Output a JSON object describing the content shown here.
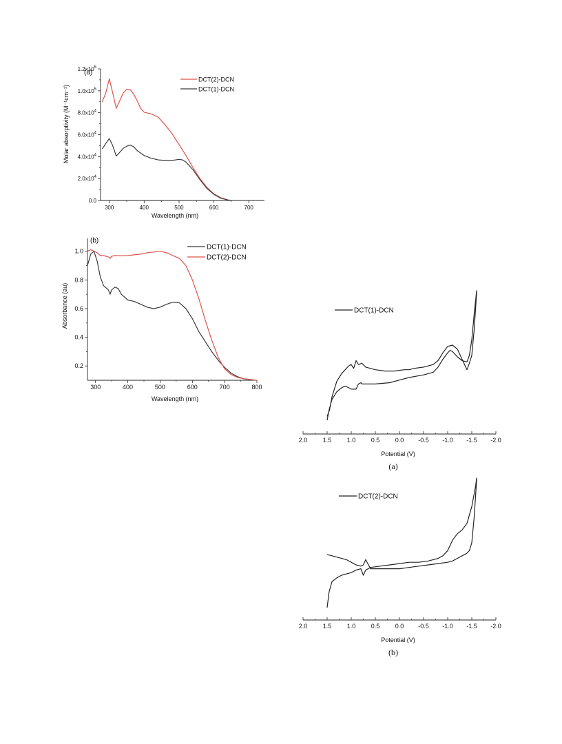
{
  "chart_data": [
    {
      "type": "line",
      "panel_label": "(a)",
      "xlabel": "Wavelength (nm)",
      "ylabel": "Molar absorptivity (M⁻¹cm⁻¹)",
      "xlim": [
        275,
        745
      ],
      "ylim": [
        0,
        120000
      ],
      "xticks": [
        300,
        400,
        500,
        600,
        700
      ],
      "yticks": [
        0,
        20000,
        40000,
        60000,
        80000,
        100000,
        120000
      ],
      "yticklabels": [
        {
          "mantissa": "0.0",
          "exp": ""
        },
        {
          "mantissa": "2.0x10",
          "exp": "4"
        },
        {
          "mantissa": "4.0x10",
          "exp": "4"
        },
        {
          "mantissa": "6.0x10",
          "exp": "4"
        },
        {
          "mantissa": "8.0x10",
          "exp": "4"
        },
        {
          "mantissa": "1.0x10",
          "exp": "5"
        },
        {
          "mantissa": "1.2x10",
          "exp": "5"
        }
      ],
      "legend_position": "top-right",
      "series": [
        {
          "name": "DCT(2)-DCN",
          "color": "#e0524a",
          "x": [
            280,
            290,
            300,
            310,
            320,
            330,
            340,
            350,
            360,
            370,
            380,
            390,
            400,
            420,
            440,
            460,
            480,
            500,
            520,
            540,
            560,
            580,
            600,
            620,
            640,
            650
          ],
          "y": [
            90000,
            98000,
            111000,
            98000,
            84000,
            91000,
            98000,
            101500,
            101000,
            97000,
            91000,
            84000,
            80500,
            79000,
            76000,
            69000,
            61000,
            51000,
            41000,
            30000,
            20000,
            12000,
            6000,
            2500,
            500,
            0
          ]
        },
        {
          "name": "DCT(1)-DCN",
          "color": "#3a3a3a",
          "x": [
            280,
            290,
            300,
            310,
            320,
            330,
            340,
            350,
            360,
            370,
            380,
            400,
            420,
            440,
            460,
            480,
            500,
            510,
            520,
            540,
            560,
            580,
            600,
            620,
            640,
            650
          ],
          "y": [
            47000,
            52000,
            56500,
            50000,
            40500,
            44000,
            47500,
            49500,
            50500,
            49000,
            45500,
            41000,
            38500,
            37000,
            36500,
            36500,
            37500,
            37000,
            35000,
            28000,
            19000,
            11000,
            5500,
            2000,
            500,
            0
          ]
        }
      ]
    },
    {
      "type": "line",
      "panel_label": "(b)",
      "xlabel": "Wavelength (nm)",
      "ylabel": "Absorbance (au)",
      "xlim": [
        275,
        800
      ],
      "ylim": [
        0.1,
        1.09
      ],
      "xticks": [
        300,
        400,
        500,
        600,
        700,
        800
      ],
      "yticks": [
        0.2,
        0.4,
        0.6,
        0.8,
        1.0
      ],
      "yticklabels": [
        "0.2",
        "0.4",
        "0.6",
        "0.8",
        "1.0"
      ],
      "legend_position": "top-right",
      "series": [
        {
          "name": "DCT(1)-DCN",
          "color": "#3a3a3a",
          "x": [
            275,
            285,
            295,
            305,
            315,
            325,
            340,
            345,
            350,
            360,
            370,
            380,
            400,
            420,
            440,
            460,
            480,
            500,
            520,
            540,
            560,
            580,
            600,
            620,
            640,
            660,
            680,
            700,
            720,
            740,
            760,
            780,
            800
          ],
          "y": [
            0.9,
            0.98,
            1.0,
            0.93,
            0.82,
            0.76,
            0.73,
            0.7,
            0.73,
            0.75,
            0.74,
            0.7,
            0.66,
            0.65,
            0.63,
            0.61,
            0.6,
            0.61,
            0.63,
            0.645,
            0.64,
            0.6,
            0.53,
            0.44,
            0.37,
            0.3,
            0.24,
            0.19,
            0.15,
            0.125,
            0.11,
            0.105,
            0.1
          ]
        },
        {
          "name": "DCT(2)-DCN",
          "color": "#e0524a",
          "x": [
            275,
            285,
            295,
            305,
            315,
            325,
            340,
            345,
            350,
            360,
            380,
            400,
            420,
            440,
            460,
            480,
            500,
            520,
            540,
            560,
            580,
            600,
            620,
            640,
            660,
            680,
            700,
            720,
            740,
            760,
            780,
            800
          ],
          "y": [
            1.0,
            1.01,
            1.0,
            0.99,
            0.97,
            0.97,
            0.96,
            0.95,
            0.965,
            0.97,
            0.968,
            0.97,
            0.975,
            0.98,
            0.99,
            0.995,
            1.0,
            0.99,
            0.97,
            0.95,
            0.9,
            0.8,
            0.67,
            0.52,
            0.38,
            0.26,
            0.18,
            0.14,
            0.12,
            0.11,
            0.105,
            0.1
          ]
        }
      ]
    },
    {
      "type": "line",
      "caption": "(a)",
      "xlabel": "Potential (V)",
      "ylabel": "",
      "xlim": [
        2.0,
        -2.0
      ],
      "ylim": [
        0,
        1
      ],
      "xticks": [
        2.0,
        1.5,
        1.0,
        0.5,
        0.0,
        -0.5,
        -1.0,
        -1.5,
        -2.0
      ],
      "xticklabels": [
        "2.0",
        "1.5",
        "1.0",
        "0.5",
        "0.0",
        "-0.5",
        "-1.0",
        "-1.5",
        "-2.0"
      ],
      "y_axis_shown": false,
      "legend_position": "top-left",
      "series": [
        {
          "name": "DCT(1)-DCN",
          "color": "#222222",
          "x": [
            1.5,
            1.46,
            1.4,
            1.3,
            1.2,
            1.15,
            1.1,
            1.0,
            0.9,
            0.85,
            0.8,
            0.78,
            0.7,
            0.5,
            0.2,
            0.0,
            -0.2,
            -0.5,
            -0.7,
            -0.8,
            -0.9,
            -1.0,
            -1.05,
            -1.1,
            -1.2,
            -1.3,
            -1.4,
            -1.45,
            -1.5,
            -1.55,
            -1.6,
            -1.6,
            -1.55,
            -1.5,
            -1.45,
            -1.4,
            -1.3,
            -1.2,
            -1.1,
            -1.0,
            -0.9,
            -0.8,
            -0.7,
            -0.5,
            -0.3,
            -0.2,
            -0.1,
            0.0,
            0.1,
            0.3,
            0.5,
            0.7,
            0.78,
            0.85,
            0.9,
            0.95,
            1.0,
            1.05,
            1.1,
            1.2,
            1.3,
            1.4,
            1.45,
            1.5
          ],
          "y": [
            0.0,
            0.08,
            0.16,
            0.22,
            0.25,
            0.26,
            0.26,
            0.24,
            0.24,
            0.28,
            0.29,
            0.28,
            0.28,
            0.28,
            0.29,
            0.31,
            0.33,
            0.35,
            0.37,
            0.41,
            0.47,
            0.52,
            0.54,
            0.53,
            0.49,
            0.46,
            0.45,
            0.5,
            0.62,
            0.82,
            1.0,
            0.98,
            0.7,
            0.5,
            0.44,
            0.39,
            0.47,
            0.55,
            0.58,
            0.57,
            0.52,
            0.46,
            0.43,
            0.41,
            0.4,
            0.39,
            0.39,
            0.385,
            0.38,
            0.38,
            0.39,
            0.41,
            0.44,
            0.43,
            0.46,
            0.4,
            0.43,
            0.42,
            0.4,
            0.36,
            0.3,
            0.18,
            0.08,
            0.03
          ]
        }
      ]
    },
    {
      "type": "line",
      "caption": "(b)",
      "xlabel": "Potential (V)",
      "ylabel": "",
      "xlim": [
        2.0,
        -2.0
      ],
      "ylim": [
        0,
        1
      ],
      "xticks": [
        2.0,
        1.5,
        1.0,
        0.5,
        0.0,
        -0.5,
        -1.0,
        -1.5,
        -2.0
      ],
      "xticklabels": [
        "2.0",
        "1.5",
        "1.0",
        "0.5",
        "0.0",
        "-0.5",
        "-1.0",
        "-1.5",
        "-2.0"
      ],
      "y_axis_shown": false,
      "legend_position": "top-left",
      "series": [
        {
          "name": "DCT(2)-DCN",
          "color": "#222222",
          "x": [
            1.5,
            1.46,
            1.4,
            1.3,
            1.2,
            1.1,
            1.0,
            0.9,
            0.8,
            0.75,
            0.7,
            0.6,
            0.4,
            0.2,
            0.0,
            -0.2,
            -0.4,
            -0.6,
            -0.8,
            -0.9,
            -1.0,
            -1.1,
            -1.2,
            -1.3,
            -1.4,
            -1.5,
            -1.58,
            -1.6,
            -1.6,
            -1.55,
            -1.5,
            -1.45,
            -1.4,
            -1.3,
            -1.2,
            -1.1,
            -1.0,
            -0.8,
            -0.6,
            -0.4,
            -0.2,
            0.0,
            0.2,
            0.4,
            0.6,
            0.7,
            0.75,
            0.8,
            0.9,
            1.0,
            1.1,
            1.2,
            1.3,
            1.4,
            1.5
          ],
          "y": [
            0.0,
            0.12,
            0.2,
            0.23,
            0.25,
            0.26,
            0.27,
            0.29,
            0.3,
            0.25,
            0.29,
            0.31,
            0.32,
            0.33,
            0.34,
            0.35,
            0.35,
            0.36,
            0.38,
            0.4,
            0.44,
            0.52,
            0.57,
            0.6,
            0.65,
            0.78,
            0.94,
            1.0,
            0.98,
            0.7,
            0.5,
            0.44,
            0.42,
            0.4,
            0.38,
            0.36,
            0.35,
            0.34,
            0.33,
            0.32,
            0.31,
            0.3,
            0.3,
            0.3,
            0.3,
            0.37,
            0.33,
            0.32,
            0.33,
            0.35,
            0.37,
            0.38,
            0.39,
            0.4,
            0.41
          ]
        }
      ]
    }
  ]
}
